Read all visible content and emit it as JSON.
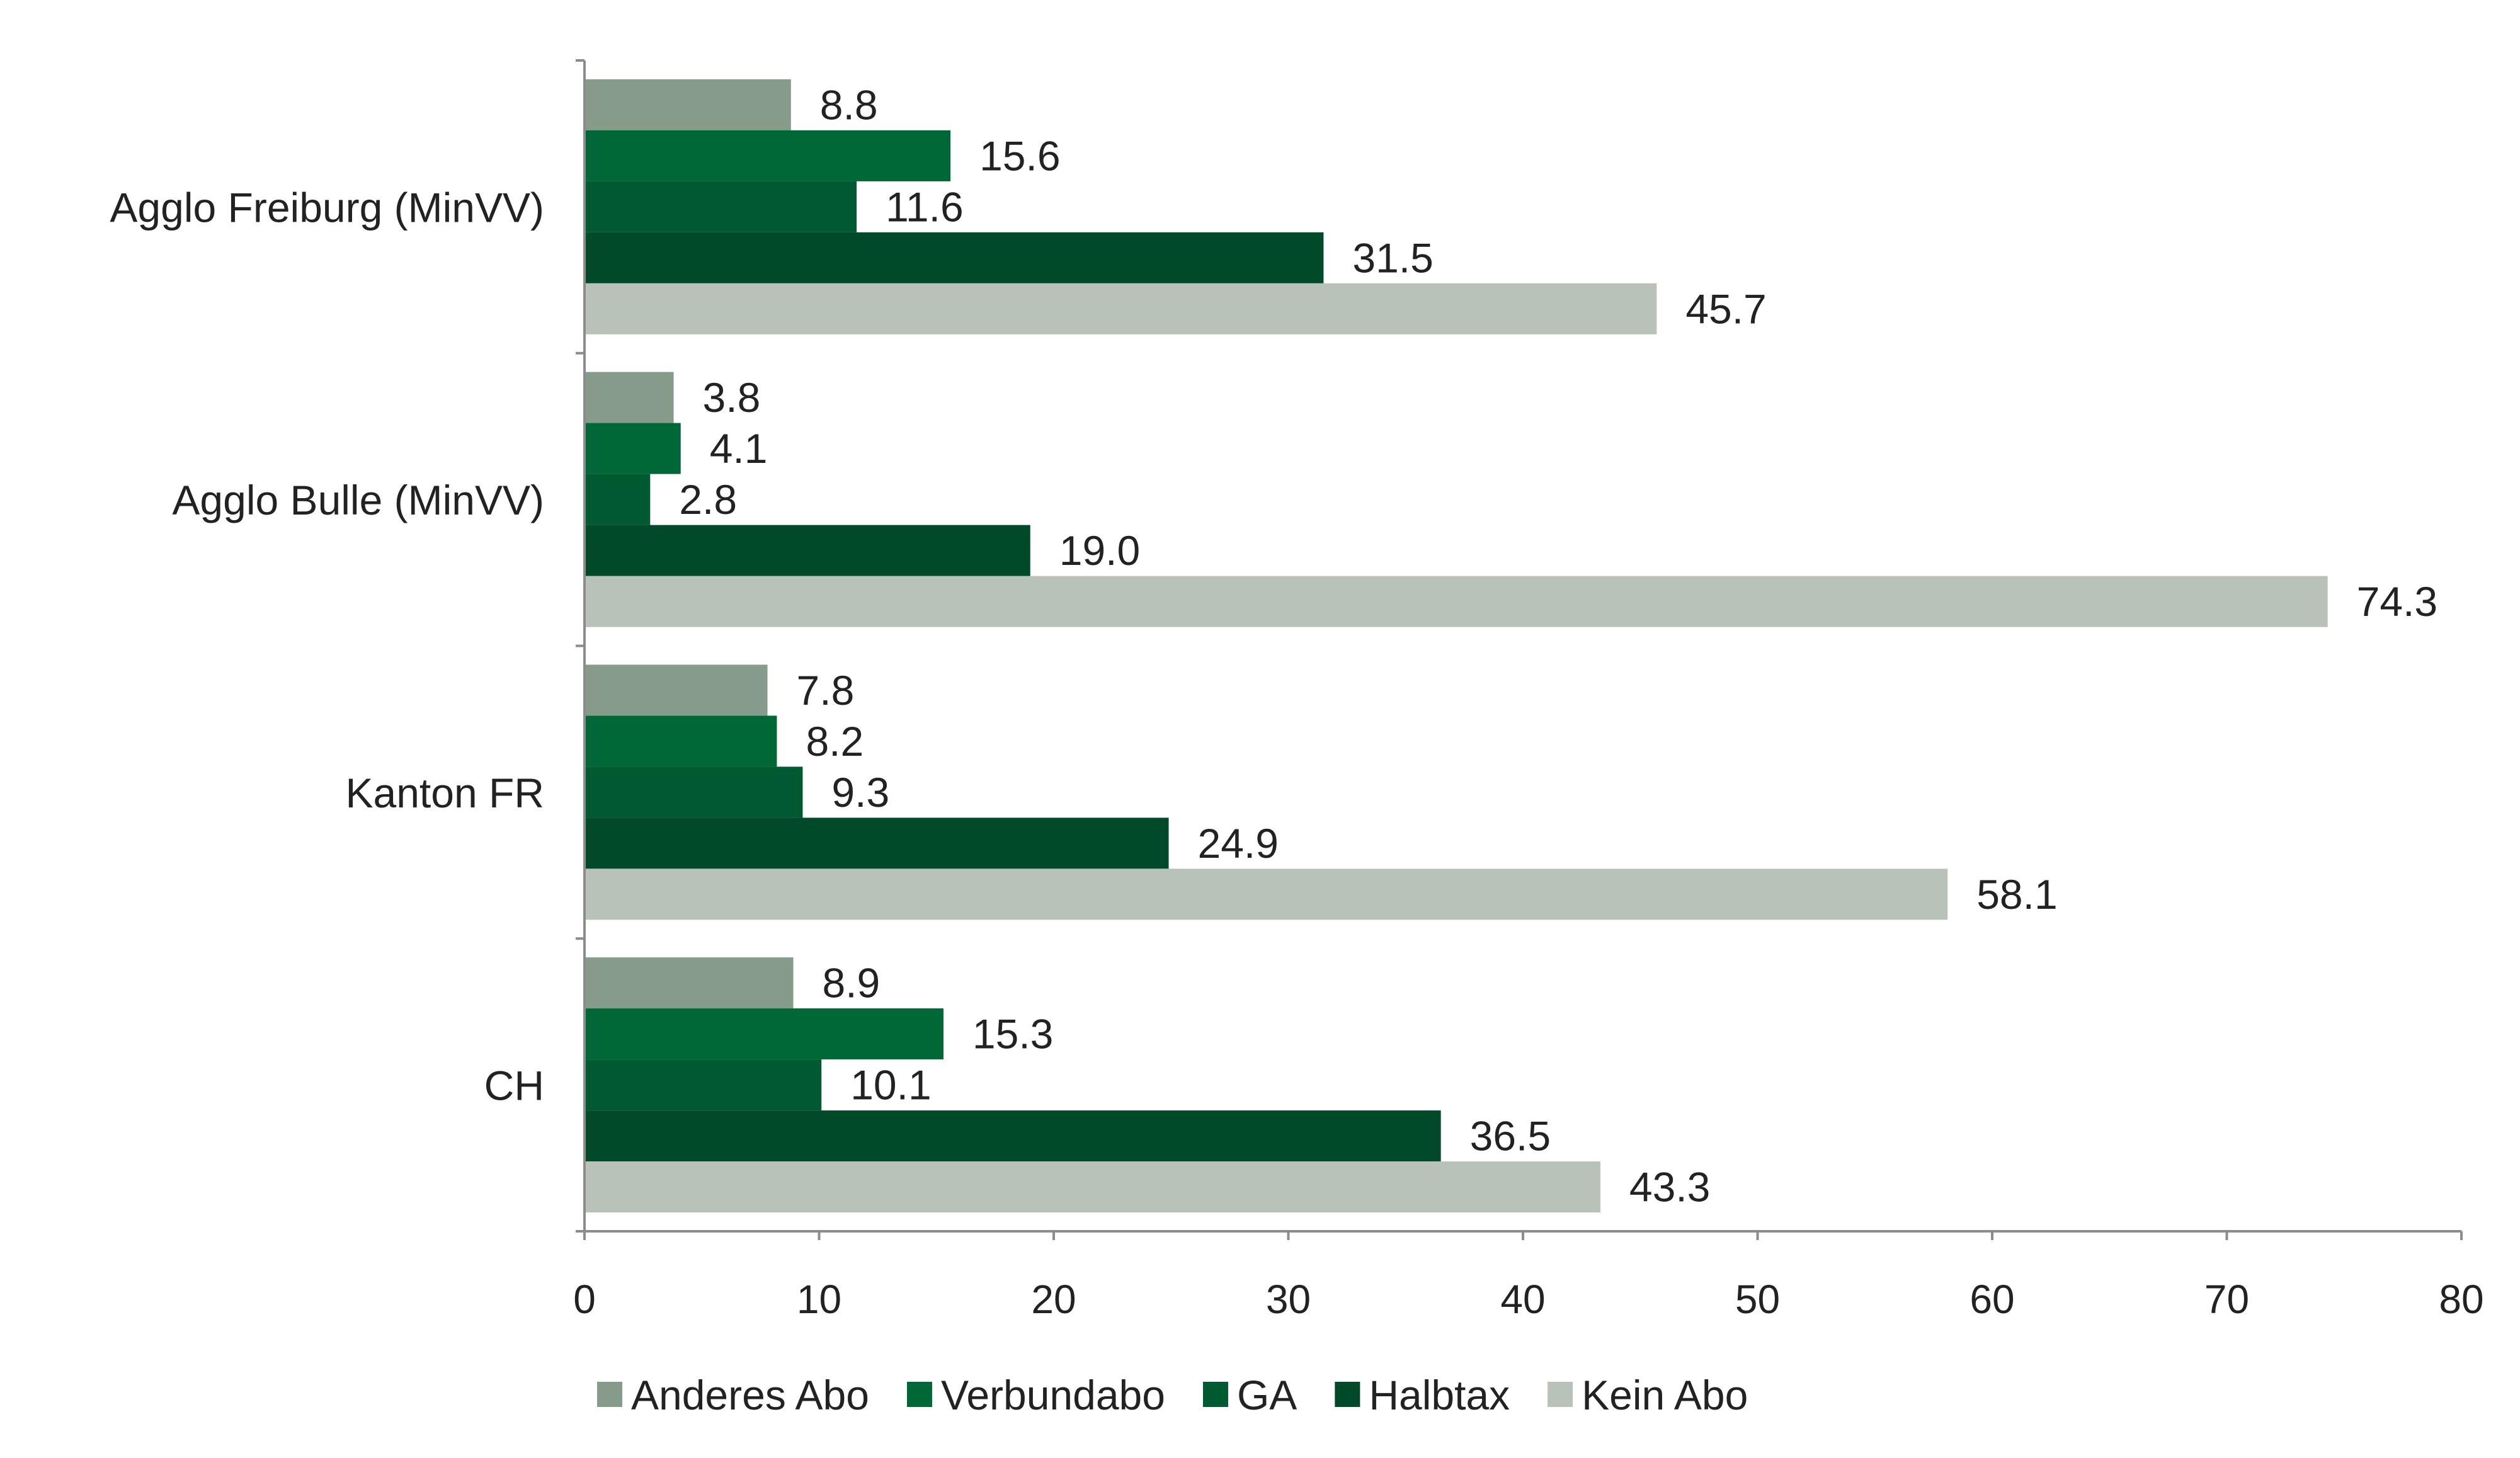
{
  "chart_data": {
    "type": "bar",
    "orientation": "horizontal",
    "title": "",
    "xlabel": "",
    "ylabel": "",
    "xlim": [
      0,
      80
    ],
    "x_ticks": [
      "0",
      "10",
      "20",
      "30",
      "40",
      "50",
      "60",
      "70",
      "80"
    ],
    "grid": false,
    "legend_position": "bottom",
    "categories": [
      "Agglo Freiburg (MinVV)",
      "Agglo Bulle (MinVV)",
      "Kanton FR",
      "CH"
    ],
    "series": [
      {
        "name": "Anderes Abo",
        "color": "#879b8a",
        "values": [
          8.8,
          3.8,
          7.8,
          8.9
        ],
        "labels": [
          "8.8",
          "3.8",
          "7.8",
          "8.9"
        ]
      },
      {
        "name": "Verbundabo",
        "color": "#006837",
        "values": [
          15.6,
          4.1,
          8.2,
          15.3
        ],
        "labels": [
          "15.6",
          "4.1",
          "8.2",
          "15.3"
        ]
      },
      {
        "name": "GA",
        "color": "#005a31",
        "values": [
          11.6,
          2.8,
          9.3,
          10.1
        ],
        "labels": [
          "11.6",
          "2.8",
          "9.3",
          "10.1"
        ]
      },
      {
        "name": "Halbtax",
        "color": "#004a2a",
        "values": [
          31.5,
          19.0,
          24.9,
          36.5
        ],
        "labels": [
          "31.5",
          "19.0",
          "24.9",
          "36.5"
        ]
      },
      {
        "name": "Kein Abo",
        "color": "#b8c2b8",
        "values": [
          45.7,
          74.3,
          58.1,
          43.3
        ],
        "labels": [
          "45.7",
          "74.3",
          "58.1",
          "43.3"
        ]
      }
    ]
  }
}
